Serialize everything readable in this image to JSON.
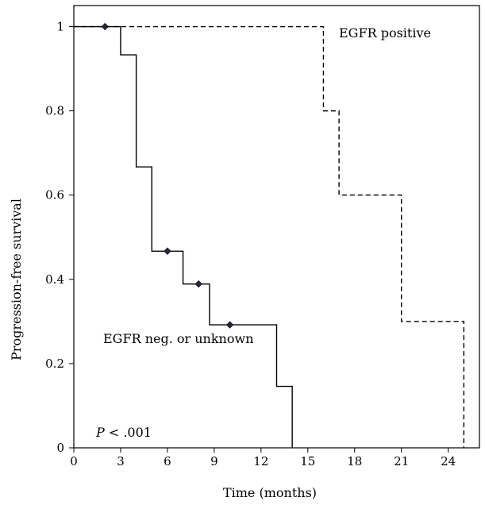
{
  "chart_data": {
    "type": "line",
    "xlabel": "Time (months)",
    "ylabel": "Progression-free survival",
    "xlim": [
      0,
      26
    ],
    "ylim": [
      0,
      1.05
    ],
    "xticks": [
      "0",
      "3",
      "6",
      "9",
      "12",
      "15",
      "18",
      "21",
      "24"
    ],
    "yticks": [
      "0",
      "0.2",
      "0.4",
      "0.6",
      "0.8",
      "1"
    ],
    "grid": false,
    "legend": "none",
    "series": [
      {
        "name": "EGFR neg. or unknown",
        "style": "solid",
        "color": "#000000",
        "steps": [
          [
            0,
            1.0
          ],
          [
            3,
            0.933
          ],
          [
            4,
            0.667
          ],
          [
            5,
            0.467
          ],
          [
            7,
            0.389
          ],
          [
            8.7,
            0.292
          ],
          [
            13,
            0.146
          ],
          [
            14,
            0.0
          ]
        ],
        "end_x": 14,
        "censored": [
          [
            2,
            1.0
          ],
          [
            6,
            0.467
          ],
          [
            8,
            0.389
          ],
          [
            10,
            0.292
          ]
        ]
      },
      {
        "name": "EGFR positive",
        "style": "dashed",
        "color": "#000000",
        "steps": [
          [
            0,
            1.0
          ],
          [
            16,
            0.8
          ],
          [
            17,
            0.6
          ],
          [
            21,
            0.3
          ],
          [
            25,
            0.0
          ]
        ],
        "end_x": 25,
        "censored": []
      }
    ],
    "annotations": {
      "pvalue_italic": "P",
      "pvalue_rest": " < .001"
    },
    "marker_color": "#1c2a4a"
  }
}
